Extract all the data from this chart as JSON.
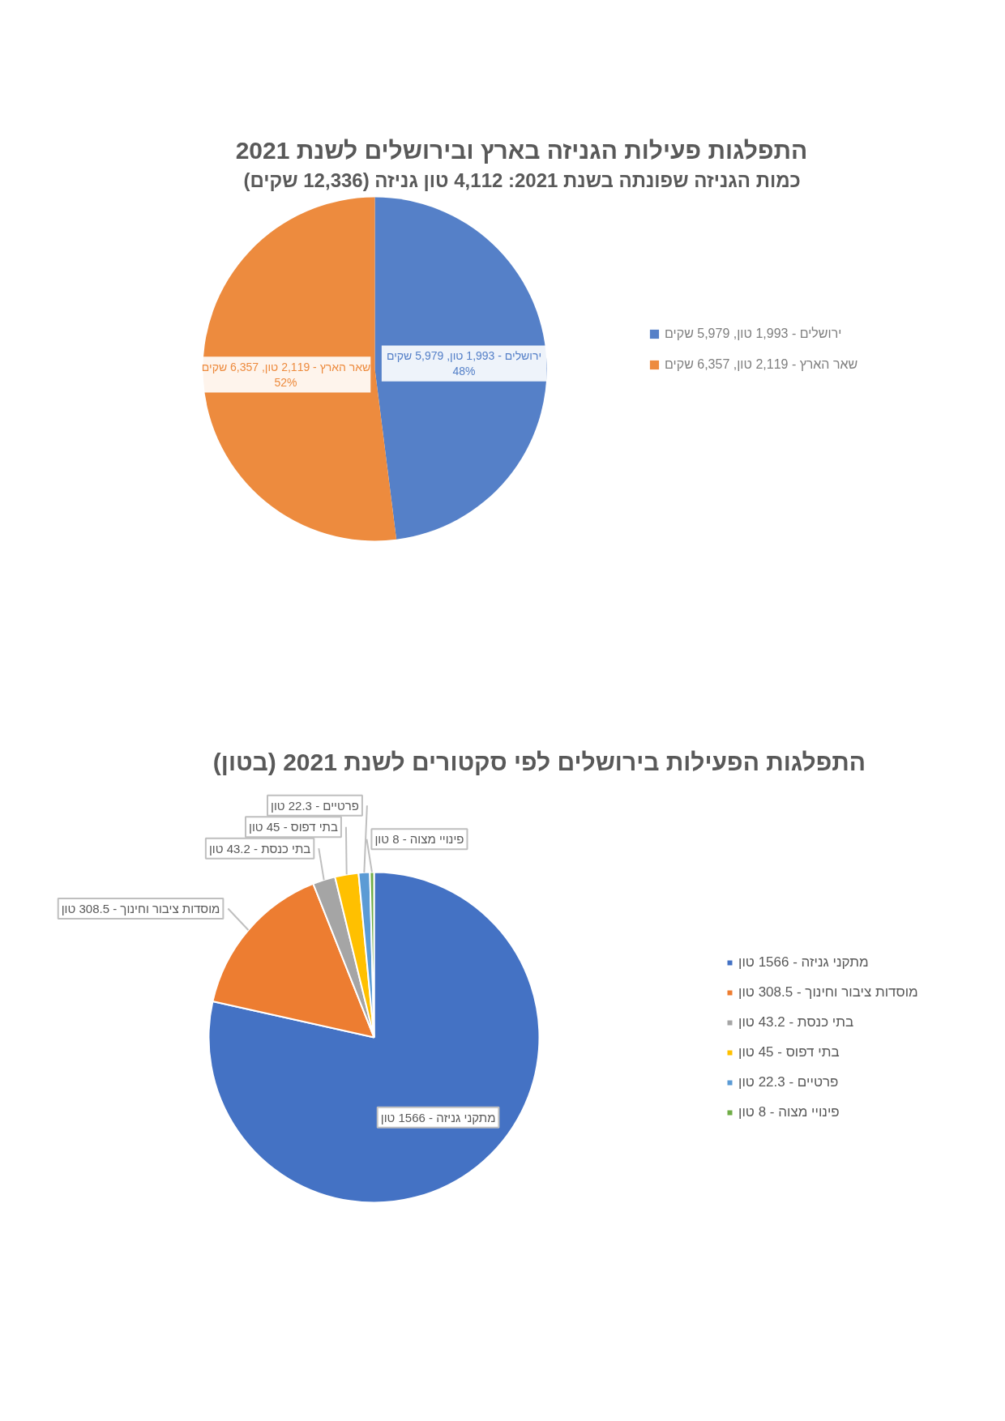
{
  "chart_data": [
    {
      "type": "pie",
      "title": "התפלגות פעילות הגניזה בארץ ובירושלים לשנת 2021",
      "subtitle": "כמות הגניזה שפונתה בשנת 2021: 4,112 טון גניזה (12,336 שקים)",
      "categories": [
        "ירושלים - 1,993 טון, 5,979 שקים",
        "שאר הארץ - 2,119 טון, 6,357 שקים"
      ],
      "values": [
        48,
        52
      ],
      "value_labels": [
        "48%",
        "52%"
      ],
      "colors": [
        "#5580c8",
        "#ed8b3e"
      ],
      "legend": "right"
    },
    {
      "type": "pie",
      "title": "התפלגות הפעילות בירושלים לפי סקטורים לשנת 2021 (בטון)",
      "categories": [
        "מתקני גניזה - 1566 טון",
        "מוסדות ציבור וחינוך - 308.5 טון",
        "בתי כנסת - 43.2 טון",
        "בתי דפוס - 45 טון",
        "פרטיים - 22.3 טון",
        "פינויי מצוה - 8 טון"
      ],
      "values": [
        78.5,
        15.5,
        2.2,
        2.3,
        1.1,
        0.4
      ],
      "colors": [
        "#4472c4",
        "#ed7d31",
        "#a5a5a5",
        "#ffc000",
        "#5b9bd5",
        "#70ad47"
      ],
      "legend": "right"
    }
  ]
}
